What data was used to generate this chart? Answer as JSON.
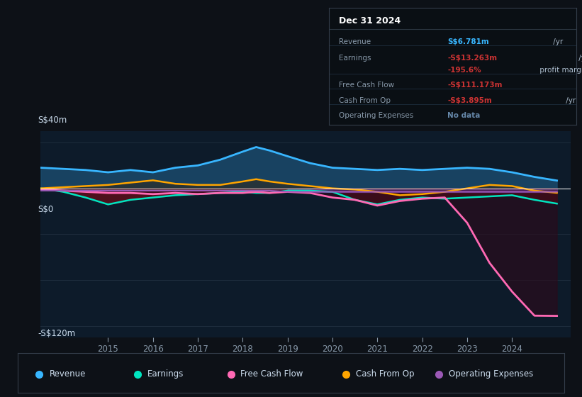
{
  "bg_color": "#0d1117",
  "plot_bg_color": "#0d1b2a",
  "ylabel_top": "S$40m",
  "ylabel_zero": "S$0",
  "ylabel_bottom": "-S$120m",
  "ylim": [
    -130,
    50
  ],
  "xlim": [
    2013.5,
    2025.3
  ],
  "years": [
    2013.5,
    2014,
    2014.5,
    2015,
    2015.5,
    2016,
    2016.5,
    2017,
    2017.5,
    2018,
    2018.3,
    2018.6,
    2019,
    2019.5,
    2020,
    2020.5,
    2021,
    2021.5,
    2022,
    2022.5,
    2023,
    2023.5,
    2024,
    2024.5,
    2025.0
  ],
  "revenue": [
    18,
    17,
    16,
    14,
    16,
    14,
    18,
    20,
    25,
    32,
    36,
    33,
    28,
    22,
    18,
    17,
    16,
    17,
    16,
    17,
    18,
    17,
    14,
    10,
    6.8
  ],
  "earnings": [
    0,
    -3,
    -8,
    -14,
    -10,
    -8,
    -6,
    -5,
    -4,
    -3,
    -4,
    -4,
    -2,
    -2,
    -3,
    -10,
    -14,
    -10,
    -8,
    -9,
    -8,
    -7,
    -6,
    -10,
    -13.3
  ],
  "free_cash_flow": [
    -1,
    -2,
    -3,
    -4,
    -4,
    -5,
    -4,
    -5,
    -4,
    -4,
    -3,
    -4,
    -3,
    -4,
    -8,
    -10,
    -15,
    -11,
    -9,
    -8,
    -30,
    -65,
    -90,
    -111,
    -111.2
  ],
  "cash_from_op": [
    0,
    1,
    2,
    3,
    5,
    7,
    4,
    3,
    3,
    6,
    8,
    6,
    4,
    2,
    0,
    -1,
    -3,
    -6,
    -5,
    -3,
    0,
    3,
    2,
    -2,
    -3.9
  ],
  "operating_expenses": [
    -2,
    -2,
    -2,
    -2,
    -2,
    -2,
    -2,
    -2,
    -2,
    -2,
    -2,
    -2,
    -3,
    -3,
    -3,
    -3,
    -3,
    -3,
    -3,
    -3,
    -3,
    -3,
    -3,
    -3,
    -3
  ],
  "revenue_color": "#38b6ff",
  "earnings_color": "#00e5c0",
  "free_cash_flow_color": "#ff69b4",
  "cash_from_op_color": "#ffa500",
  "operating_expenses_color": "#9b59b6",
  "revenue_fill": "#1a4a6b",
  "zero_line_color": "#ffffff",
  "grid_color": "#1e2d3d",
  "tick_color": "#8899aa",
  "text_color": "#ccddee",
  "info_box_title": "Dec 31 2024",
  "info_rows": [
    {
      "label": "Revenue",
      "val1": "S$6.781m",
      "val1_color": "#38b6ff",
      "suffix1": " /yr",
      "val2": "",
      "val2_color": ""
    },
    {
      "label": "Earnings",
      "val1": "-S$13.263m",
      "val1_color": "#cc3333",
      "suffix1": " /yr",
      "val2": "",
      "val2_color": ""
    },
    {
      "label": "",
      "val1": "-195.6%",
      "val1_color": "#cc3333",
      "suffix1": " profit margin",
      "val2": "",
      "val2_color": ""
    },
    {
      "label": "Free Cash Flow",
      "val1": "-S$111.173m",
      "val1_color": "#cc3333",
      "suffix1": " /yr",
      "val2": "",
      "val2_color": ""
    },
    {
      "label": "Cash From Op",
      "val1": "-S$3.895m",
      "val1_color": "#cc3333",
      "suffix1": " /yr",
      "val2": "",
      "val2_color": ""
    },
    {
      "label": "Operating Expenses",
      "val1": "No data",
      "val1_color": "#6688aa",
      "suffix1": "",
      "val2": "",
      "val2_color": ""
    }
  ],
  "legend_items": [
    {
      "label": "Revenue",
      "color": "#38b6ff"
    },
    {
      "label": "Earnings",
      "color": "#00e5c0"
    },
    {
      "label": "Free Cash Flow",
      "color": "#ff69b4"
    },
    {
      "label": "Cash From Op",
      "color": "#ffa500"
    },
    {
      "label": "Operating Expenses",
      "color": "#9b59b6"
    }
  ],
  "xticks": [
    2015,
    2016,
    2017,
    2018,
    2019,
    2020,
    2021,
    2022,
    2023,
    2024
  ]
}
